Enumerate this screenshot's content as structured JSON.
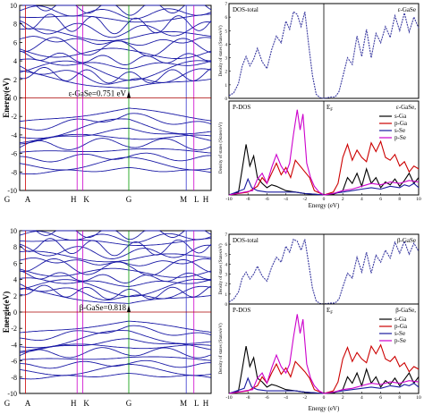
{
  "chart_data": [
    {
      "type": "line",
      "panel": "band-structure-top",
      "ylabel": "Energy(eV)",
      "ylim": [
        -10,
        10
      ],
      "yticks": [
        10,
        8,
        6,
        4,
        2,
        0,
        -2,
        -4,
        -6,
        -8,
        -10
      ],
      "kpoints": [
        {
          "label": "G",
          "k": 0
        },
        {
          "label": "A",
          "k": 0.03
        },
        {
          "label": "H",
          "k": 0.3
        },
        {
          "label": "K",
          "k": 0.33
        },
        {
          "label": "G",
          "k": 0.57
        },
        {
          "label": "M",
          "k": 0.87
        },
        {
          "label": "L",
          "k": 0.91
        },
        {
          "label": "H",
          "k": 1
        }
      ],
      "kpoint_line_colors": [
        "#cc0000",
        "#cc00cc",
        "#cc00cc",
        "#009900",
        "#3333cc",
        "#cc00cc"
      ],
      "band_color": "#1a1aa6",
      "fermi_level": 0,
      "annotation": "ε-GaSe=0.751 eV",
      "band_gap_ev": 0.751
    },
    {
      "type": "line",
      "panel": "band-structure-bottom",
      "ylabel": "Energie(eV)",
      "ylim": [
        -10,
        10
      ],
      "yticks": [
        10,
        8,
        6,
        4,
        2,
        0,
        -2,
        -4,
        -6,
        -8,
        -10
      ],
      "kpoints": [
        {
          "label": "G",
          "k": 0
        },
        {
          "label": "A",
          "k": 0.03
        },
        {
          "label": "H",
          "k": 0.3
        },
        {
          "label": "K",
          "k": 0.33
        },
        {
          "label": "G",
          "k": 0.57
        },
        {
          "label": "M",
          "k": 0.87
        },
        {
          "label": "L",
          "k": 0.91
        },
        {
          "label": "H",
          "k": 1
        }
      ],
      "kpoint_line_colors": [
        "#cc0000",
        "#cc00cc",
        "#cc00cc",
        "#009900",
        "#3333cc",
        "#cc00cc"
      ],
      "band_color": "#1a1aa6",
      "fermi_level": 0,
      "annotation": "β-GaSe=0.818",
      "band_gap_ev": 0.818
    },
    {
      "type": "line",
      "panel": "dos-total-epsilon",
      "title": "DOS-total",
      "label": "ε-GaSe",
      "ylabel": "Density of states (States/eV)",
      "xlim": [
        -10,
        10
      ],
      "ylim": [
        0,
        7
      ],
      "yticks": [
        0,
        1,
        2,
        3,
        4,
        5,
        6,
        7
      ],
      "ef_label": "E",
      "ef_sub": "F",
      "series": [
        {
          "color": "#3a3aa0",
          "dash": true,
          "x": [
            -10,
            -9.5,
            -9,
            -8.6,
            -8.2,
            -7.8,
            -7.4,
            -7,
            -6.5,
            -6,
            -5.5,
            -5,
            -4.5,
            -4,
            -3.6,
            -3.2,
            -2.8,
            -2.4,
            -2,
            -1.6,
            -1.2,
            -0.8,
            -0.4,
            0,
            0.4,
            0.8,
            1.2,
            1.6,
            2,
            2.5,
            3,
            3.5,
            4,
            4.5,
            5,
            5.5,
            6,
            6.5,
            7,
            7.5,
            8,
            8.5,
            9,
            9.5,
            10
          ],
          "y": [
            0.2,
            0.4,
            1.1,
            2.4,
            3.1,
            2.4,
            2.9,
            3.7,
            2.7,
            2.2,
            3.6,
            4.6,
            4.1,
            5.7,
            5.1,
            6.4,
            6.2,
            5.3,
            6.4,
            4.0,
            1.7,
            0.3,
            0.05,
            0.0,
            0.05,
            0.1,
            0.1,
            0.5,
            1.6,
            3.0,
            2.5,
            4.6,
            3.1,
            5.1,
            3.0,
            4.8,
            4.1,
            5.3,
            4.5,
            6.1,
            5.0,
            6.3,
            4.9,
            6.0,
            5.2
          ]
        }
      ]
    },
    {
      "type": "line",
      "panel": "pdos-epsilon",
      "title": "P-DOS",
      "label": "ε-GaSe,",
      "xlabel": "Energy (eV)",
      "ylabel": "Density of states (States/eV)",
      "xlim": [
        -10,
        10
      ],
      "ylim": [
        0,
        6.5
      ],
      "xticks": [
        -10,
        -8,
        -6,
        -4,
        -2,
        0,
        2,
        4,
        6,
        8,
        10
      ],
      "ef_label": "E",
      "ef_sub": "F",
      "series": [
        {
          "name": "s-Ga",
          "color": "#000000",
          "x": [
            -10,
            -9,
            -8.6,
            -8.2,
            -7.8,
            -7.4,
            -7,
            -6.5,
            -6,
            -5.5,
            -5,
            -4,
            -3,
            -2,
            -1,
            -0.5,
            0,
            0.5,
            1,
            2,
            2.5,
            3,
            3.5,
            4,
            4.5,
            5,
            5.5,
            6,
            6.5,
            7,
            7.5,
            8,
            8.5,
            9,
            9.5,
            10
          ],
          "y": [
            0,
            0.2,
            1.8,
            3.5,
            2.0,
            2.7,
            1.2,
            0.8,
            0.5,
            0.7,
            0.6,
            0.3,
            0.2,
            0.1,
            0.05,
            0.02,
            0,
            0.02,
            0.05,
            0.3,
            1.2,
            0.8,
            1.5,
            0.6,
            1.8,
            0.8,
            1.2,
            0.5,
            0.9,
            0.7,
            1.1,
            0.6,
            1.0,
            1.5,
            0.8,
            1.2
          ]
        },
        {
          "name": "p-Ga",
          "color": "#cc0000",
          "x": [
            -10,
            -8,
            -7,
            -6.5,
            -6,
            -5.5,
            -5,
            -4.5,
            -4,
            -3.5,
            -3,
            -2.5,
            -2,
            -1.5,
            -1,
            0,
            1,
            1.5,
            2,
            2.5,
            3,
            3.5,
            4,
            4.5,
            5,
            5.5,
            6,
            6.5,
            7,
            7.5,
            8,
            8.5,
            9,
            9.5,
            10
          ],
          "y": [
            0,
            0.2,
            0.6,
            1.2,
            0.8,
            1.5,
            2.2,
            1.4,
            1.9,
            1.2,
            2.4,
            2.0,
            1.6,
            1.2,
            0.3,
            0,
            0.2,
            0.8,
            2.6,
            3.5,
            2.4,
            3.1,
            2.6,
            2.3,
            3.6,
            3.0,
            3.7,
            2.6,
            2.4,
            2.8,
            2.0,
            2.3,
            1.6,
            2.0,
            1.8
          ]
        },
        {
          "name": "s-Se",
          "color": "#1a1aa0",
          "x": [
            -10,
            -8.4,
            -8,
            -7.6,
            -7,
            -6,
            -5,
            -4,
            -3,
            -2,
            -1,
            0,
            2,
            3,
            4,
            5,
            6,
            7,
            8,
            8.5,
            9,
            9.5,
            10
          ],
          "y": [
            0,
            0.4,
            1.1,
            0.5,
            0.3,
            0.2,
            0.2,
            0.2,
            0.2,
            0.1,
            0.05,
            0,
            0.2,
            0.3,
            0.4,
            0.5,
            0.4,
            0.6,
            0.5,
            0.7,
            0.6,
            0.8,
            0.5
          ]
        },
        {
          "name": "p-Se",
          "color": "#cc00cc",
          "x": [
            -10,
            -7.5,
            -7,
            -6.5,
            -6,
            -5.5,
            -5,
            -4.5,
            -4,
            -3.6,
            -3.2,
            -2.8,
            -2.5,
            -2.2,
            -1.8,
            -1.4,
            -1,
            -0.5,
            0,
            1,
            2,
            3,
            4,
            5,
            6,
            7,
            8,
            9,
            10
          ],
          "y": [
            0,
            0.3,
            1.1,
            1.5,
            0.8,
            1.9,
            2.8,
            2.0,
            1.5,
            2.2,
            4.2,
            5.9,
            4.5,
            5.6,
            2.2,
            1.2,
            0.6,
            0.2,
            0,
            0.1,
            0.3,
            0.4,
            0.6,
            0.8,
            0.7,
            0.9,
            0.8,
            1.0,
            0.9
          ]
        }
      ]
    },
    {
      "type": "line",
      "panel": "dos-total-beta",
      "title": "DOS-total",
      "label": "β-GaSe",
      "ylabel": "Density of states (States/eV)",
      "xlim": [
        -10,
        10
      ],
      "ylim": [
        0,
        7
      ],
      "yticks": [
        0,
        1,
        2,
        3,
        4,
        5,
        6,
        7
      ],
      "ef_label": "E",
      "ef_sub": "F",
      "series": [
        {
          "color": "#3a3aa0",
          "dash": true,
          "x": [
            -10,
            -9.5,
            -9,
            -8.6,
            -8.2,
            -7.8,
            -7.4,
            -7,
            -6.5,
            -6,
            -5.5,
            -5,
            -4.5,
            -4,
            -3.6,
            -3.2,
            -2.8,
            -2.4,
            -2,
            -1.6,
            -1.2,
            -0.8,
            -0.4,
            0,
            0.4,
            0.8,
            1.2,
            1.6,
            2,
            2.5,
            3,
            3.5,
            4,
            4.5,
            5,
            5.5,
            6,
            6.5,
            7,
            7.5,
            8,
            8.5,
            9,
            9.5,
            10
          ],
          "y": [
            0.2,
            0.5,
            1.2,
            2.6,
            3.2,
            2.5,
            3.0,
            3.8,
            2.8,
            2.3,
            3.7,
            4.7,
            4.2,
            5.8,
            5.2,
            6.5,
            6.3,
            5.4,
            6.5,
            4.1,
            1.6,
            0.3,
            0.05,
            0.0,
            0.05,
            0.1,
            0.1,
            0.5,
            1.7,
            3.1,
            2.6,
            4.7,
            3.2,
            5.2,
            3.1,
            4.9,
            4.2,
            5.4,
            4.6,
            6.2,
            5.1,
            6.3,
            5.0,
            6.1,
            5.3
          ]
        }
      ]
    },
    {
      "type": "line",
      "panel": "pdos-beta",
      "title": "P-DOS",
      "label": "β-GaSe,",
      "xlabel": "Energy (eV)",
      "ylabel": "Density of states (States/eV)",
      "xlim": [
        -10,
        10
      ],
      "ylim": [
        0,
        7
      ],
      "xticks": [
        -10,
        -8,
        -6,
        -4,
        -2,
        0,
        2,
        4,
        6,
        8,
        10
      ],
      "ef_label": "E",
      "ef_sub": "F",
      "series": [
        {
          "name": "s-Ga",
          "color": "#000000",
          "x": [
            -10,
            -9,
            -8.6,
            -8.2,
            -7.8,
            -7.4,
            -7,
            -6.5,
            -6,
            -5.5,
            -5,
            -4,
            -3,
            -2,
            -1,
            -0.5,
            0,
            0.5,
            1,
            2,
            2.5,
            3,
            3.5,
            4,
            4.5,
            5,
            5.5,
            6,
            6.5,
            7,
            7.5,
            8,
            8.5,
            9,
            9.5,
            10
          ],
          "y": [
            0,
            0.2,
            1.9,
            3.7,
            2.1,
            2.8,
            1.2,
            0.9,
            0.5,
            0.7,
            0.6,
            0.3,
            0.2,
            0.1,
            0.05,
            0.02,
            0,
            0.02,
            0.05,
            0.3,
            1.3,
            0.8,
            1.6,
            0.6,
            1.9,
            0.8,
            1.3,
            0.5,
            1.0,
            0.7,
            1.2,
            0.6,
            1.1,
            1.6,
            0.8,
            1.3
          ]
        },
        {
          "name": "p-Ga",
          "color": "#cc0000",
          "x": [
            -10,
            -8,
            -7,
            -6.5,
            -6,
            -5.5,
            -5,
            -4.5,
            -4,
            -3.5,
            -3,
            -2.5,
            -2,
            -1.5,
            -1,
            0,
            1,
            1.5,
            2,
            2.5,
            3,
            3.5,
            4,
            4.5,
            5,
            5.5,
            6,
            6.5,
            7,
            7.5,
            8,
            8.5,
            9,
            9.5,
            10
          ],
          "y": [
            0,
            0.2,
            0.6,
            1.3,
            0.8,
            1.6,
            2.3,
            1.5,
            2.0,
            1.3,
            2.5,
            2.1,
            1.7,
            1.2,
            0.3,
            0,
            0.2,
            0.9,
            2.7,
            3.6,
            2.5,
            3.2,
            2.7,
            2.4,
            3.7,
            3.1,
            3.8,
            2.7,
            2.5,
            2.9,
            2.1,
            2.4,
            1.7,
            2.1,
            1.9
          ]
        },
        {
          "name": "s-Se",
          "color": "#1a1aa0",
          "x": [
            -10,
            -8.4,
            -8,
            -7.6,
            -7,
            -6,
            -5,
            -4,
            -3,
            -2,
            -1,
            0,
            2,
            3,
            4,
            5,
            6,
            7,
            8,
            8.5,
            9,
            9.5,
            10
          ],
          "y": [
            0,
            0.4,
            1.2,
            0.5,
            0.3,
            0.2,
            0.2,
            0.2,
            0.2,
            0.1,
            0.05,
            0,
            0.2,
            0.3,
            0.4,
            0.5,
            0.4,
            0.6,
            0.5,
            0.7,
            0.6,
            0.8,
            0.5
          ]
        },
        {
          "name": "p-Se",
          "color": "#cc00cc",
          "x": [
            -10,
            -7.5,
            -7,
            -6.5,
            -6,
            -5.5,
            -5,
            -4.5,
            -4,
            -3.6,
            -3.2,
            -2.8,
            -2.5,
            -2.2,
            -1.8,
            -1.4,
            -1,
            -0.5,
            0,
            1,
            2,
            3,
            4,
            5,
            6,
            7,
            8,
            9,
            10
          ],
          "y": [
            0,
            0.3,
            1.2,
            1.6,
            0.8,
            2.0,
            3.0,
            2.1,
            1.6,
            2.3,
            4.4,
            6.2,
            4.7,
            5.8,
            2.3,
            1.2,
            0.6,
            0.2,
            0,
            0.1,
            0.3,
            0.4,
            0.6,
            0.8,
            0.7,
            0.9,
            0.8,
            1.0,
            0.9
          ]
        }
      ]
    }
  ]
}
